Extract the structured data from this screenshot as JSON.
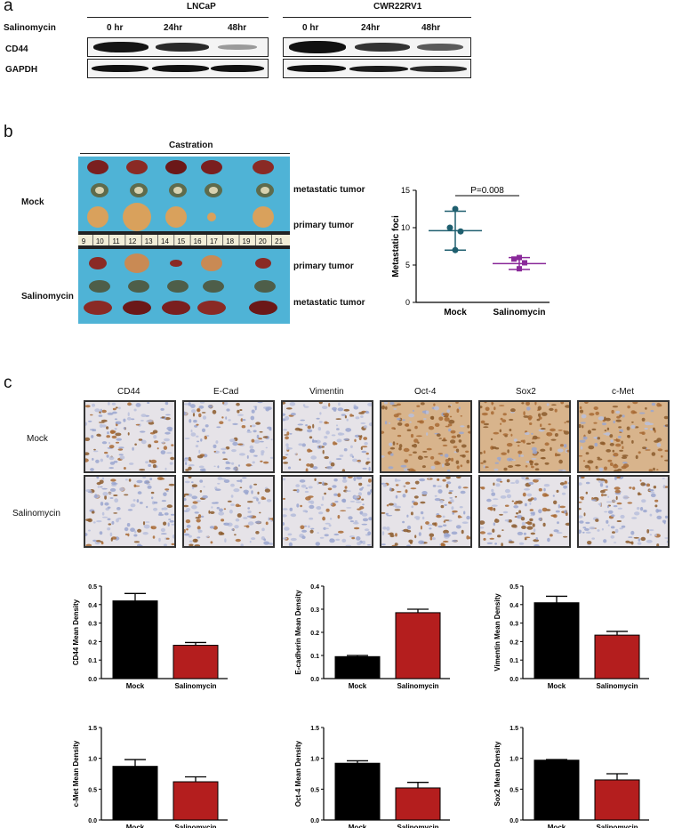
{
  "panel_a": {
    "letter": "a",
    "cell_lines": [
      "LNCaP",
      "CWR22RV1"
    ],
    "treatment_label": "Salinomycin",
    "timepoints_lncap": [
      "0 hr",
      "24hr",
      "48hr"
    ],
    "timepoints_cwr": [
      "0 hr",
      "24hr",
      "48hr"
    ],
    "rows": [
      "CD44",
      "GAPDH"
    ]
  },
  "panel_b": {
    "letter": "b",
    "castration_label": "Castration",
    "group_labels": [
      "Mock",
      "Salinomycin"
    ],
    "tumor_labels": [
      "metastatic tumor",
      "primary tumor",
      "primary tumor",
      "metastatic tumor"
    ],
    "ruler_numbers": [
      "9",
      "10",
      "11",
      "12",
      "13",
      "14",
      "15",
      "16",
      "17",
      "18",
      "19",
      "20",
      "21"
    ],
    "colors": {
      "mock": "#1f5f6f",
      "salinomycin": "#8a2a9a",
      "tray": "#4fb3d6"
    }
  },
  "panel_c": {
    "letter": "c",
    "markers": [
      "CD44",
      "E-Cad",
      "Vimentin",
      "Oct-4",
      "Sox2",
      "c-Met"
    ],
    "rows": [
      "Mock",
      "Salinomycin"
    ],
    "stain_colors": {
      "brown": "#8b5a2b",
      "blue": "#aeb8d6"
    }
  },
  "chart_data": [
    {
      "type": "scatter",
      "title": "",
      "significance": "P=0.008",
      "xlabel": "",
      "ylabel": "Metastatic foci",
      "categories": [
        "Mock",
        "Salinomycin"
      ],
      "ylim": [
        0,
        15
      ],
      "yticks": [
        "0",
        "5",
        "10",
        "15"
      ],
      "series": [
        {
          "name": "Mock",
          "points": [
            12.5,
            10,
            9.5,
            7
          ],
          "mean": 9.6,
          "sd": 2.6,
          "color": "#1f5f6f"
        },
        {
          "name": "Salinomycin",
          "points": [
            6,
            5.8,
            5.3,
            4.5
          ],
          "mean": 5.2,
          "sd": 0.8,
          "color": "#8a2a9a"
        }
      ]
    },
    {
      "type": "bar",
      "ylabel": "CD44 Mean Density",
      "categories": [
        "Mock",
        "Salinomycin"
      ],
      "values": [
        0.42,
        0.18
      ],
      "errors": [
        0.04,
        0.015
      ],
      "ylim": [
        0,
        0.5
      ],
      "yticks": [
        "0.0",
        "0.1",
        "0.2",
        "0.3",
        "0.4",
        "0.5"
      ]
    },
    {
      "type": "bar",
      "ylabel": "E-cadherin Mean Density",
      "categories": [
        "Mock",
        "Salinomycin"
      ],
      "values": [
        0.095,
        0.285
      ],
      "errors": [
        0.005,
        0.015
      ],
      "ylim": [
        0,
        0.4
      ],
      "yticks": [
        "0.0",
        "0.1",
        "0.2",
        "0.3",
        "0.4"
      ]
    },
    {
      "type": "bar",
      "ylabel": "Vimentin Mean Density",
      "categories": [
        "Mock",
        "Salinomycin"
      ],
      "values": [
        0.41,
        0.235
      ],
      "errors": [
        0.035,
        0.02
      ],
      "ylim": [
        0,
        0.5
      ],
      "yticks": [
        "0.0",
        "0.1",
        "0.2",
        "0.3",
        "0.4",
        "0.5"
      ]
    },
    {
      "type": "bar",
      "ylabel": "c-Met Mean Density",
      "categories": [
        "Mock",
        "Salinomycin"
      ],
      "values": [
        0.87,
        0.62
      ],
      "errors": [
        0.11,
        0.08
      ],
      "ylim": [
        0,
        1.5
      ],
      "yticks": [
        "0.0",
        "0.5",
        "1.0",
        "1.5"
      ]
    },
    {
      "type": "bar",
      "ylabel": "Oct-4 Mean Density",
      "categories": [
        "Mock",
        "Salinomycin"
      ],
      "values": [
        0.92,
        0.52
      ],
      "errors": [
        0.04,
        0.09
      ],
      "ylim": [
        0,
        1.5
      ],
      "yticks": [
        "0.0",
        "0.5",
        "1.0",
        "1.5"
      ]
    },
    {
      "type": "bar",
      "ylabel": "Sox2 Mean Density",
      "categories": [
        "Mock",
        "Salinomycin"
      ],
      "values": [
        0.97,
        0.65
      ],
      "errors": [
        0.01,
        0.1
      ],
      "ylim": [
        0,
        1.5
      ],
      "yticks": [
        "0.0",
        "0.5",
        "1.0",
        "1.5"
      ]
    }
  ]
}
